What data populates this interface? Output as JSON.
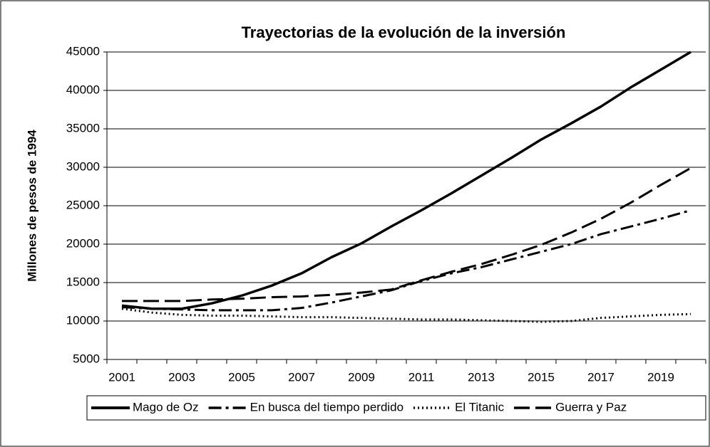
{
  "chart_data": {
    "type": "line",
    "title": "Trayectorias de la evolución de la inversión",
    "y_label": "Millones de pesos de 1994",
    "categories": [
      "2001",
      null,
      "2003",
      null,
      "2005",
      null,
      "2007",
      null,
      "2009",
      null,
      "2011",
      null,
      "2013",
      null,
      "2015",
      null,
      "2017",
      null,
      "2019",
      null
    ],
    "series": [
      {
        "name": "Mago de Oz",
        "color": "#000000",
        "style": "solid",
        "values": [
          12000,
          11600,
          11600,
          12300,
          13300,
          14600,
          16200,
          18300,
          20100,
          22300,
          24400,
          26600,
          28900,
          31200,
          33600,
          35700,
          37900,
          40400,
          42700,
          45000
        ]
      },
      {
        "name": "En busca del tiempo perdido",
        "color": "#000000",
        "style": "dashdot",
        "values": [
          11800,
          11600,
          11500,
          11400,
          11400,
          11400,
          11700,
          12400,
          13200,
          14000,
          15200,
          16200,
          17000,
          18000,
          19000,
          20000,
          21300,
          22300,
          23300,
          24400
        ]
      },
      {
        "name": "El Titanic",
        "color": "#000000",
        "style": "dotted",
        "values": [
          11600,
          11100,
          10800,
          10700,
          10700,
          10600,
          10500,
          10500,
          10400,
          10300,
          10200,
          10200,
          10100,
          10000,
          9900,
          10000,
          10400,
          10600,
          10800,
          10900
        ]
      },
      {
        "name": "Guerra y Paz",
        "color": "#000000",
        "style": "dashed",
        "values": [
          12600,
          12600,
          12600,
          12800,
          12900,
          13100,
          13200,
          13400,
          13700,
          14100,
          15300,
          16400,
          17400,
          18600,
          19900,
          21500,
          23300,
          25400,
          27700,
          29900
        ]
      }
    ],
    "ylim": [
      5000,
      45000
    ],
    "yticks": [
      5000,
      10000,
      15000,
      20000,
      25000,
      30000,
      35000,
      40000,
      45000
    ],
    "grid": true,
    "legend": "bottom"
  }
}
